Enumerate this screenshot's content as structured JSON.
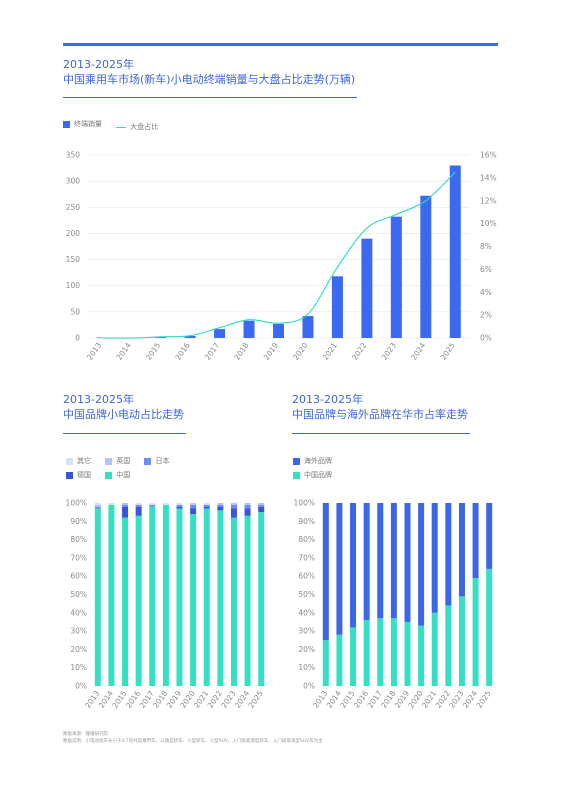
{
  "page": {
    "main_title_1": "2013-2025年",
    "main_title_2": "中国乘用车市场(新车)小电动终端销量与大盘占比走势(万辆)",
    "left_title_1": "2013-2025年",
    "left_title_2": "中国品牌小电动占比走势",
    "right_title_1": "2013-2025年",
    "right_title_2": "中国品牌与海外品牌在华市占率走势",
    "source_line": "数据来源：懂懂研究院",
    "note_line": "数据说明：小电动指车长小于4.7的纯电乘用车，以微型轿车、小型轿车、小型SUV、入门级紧凑型轿车、入门级紧凑型SUV等为主"
  },
  "colors": {
    "bar": "#3b6af0",
    "line": "#2fd9c2",
    "china": "#33e0c4",
    "japan": "#6f8ef5",
    "uk": "#b3c3f5",
    "germany": "#3a55d8",
    "other": "#d6e0f7",
    "overseas": "#3b66e6",
    "title": "#3b66e0"
  },
  "chart_data": [
    {
      "type": "bar",
      "categories": [
        "2013",
        "2014",
        "2015",
        "2016",
        "2017",
        "2018",
        "2019",
        "2020",
        "2021",
        "2022",
        "2023",
        "2024",
        "2025"
      ],
      "series": [
        {
          "name": "终端销量",
          "type": "bar",
          "axis": "left",
          "values": [
            1,
            1,
            2,
            4,
            17,
            33,
            27,
            42,
            118,
            190,
            232,
            272,
            330
          ]
        },
        {
          "name": "大盘占比",
          "type": "line",
          "axis": "right",
          "values": [
            0.0,
            0.0,
            0.1,
            0.2,
            0.9,
            1.6,
            1.3,
            2.1,
            6.2,
            9.6,
            10.8,
            12.0,
            14.5
          ]
        }
      ],
      "ylim": [
        0,
        350
      ],
      "yticks": [
        "0",
        "50",
        "100",
        "150",
        "200",
        "250",
        "300",
        "350"
      ],
      "y2lim": [
        0,
        16
      ],
      "y2ticks": [
        "0%",
        "2%",
        "4%",
        "6%",
        "8%",
        "10%",
        "12%",
        "14%",
        "16%"
      ],
      "grid": true,
      "legend_position": "top-left"
    },
    {
      "type": "bar",
      "stacked": true,
      "categories": [
        "2013",
        "2014",
        "2015",
        "2016",
        "2017",
        "2018",
        "2019",
        "2020",
        "2021",
        "2022",
        "2023",
        "2024",
        "2025"
      ],
      "series": [
        {
          "name": "中国",
          "values": [
            97,
            99,
            92,
            93,
            98,
            99,
            97,
            94,
            97,
            96,
            92,
            93,
            95
          ]
        },
        {
          "name": "德国",
          "values": [
            0,
            0,
            6,
            5,
            0,
            0,
            1,
            3,
            1,
            2,
            5,
            4,
            3
          ]
        },
        {
          "name": "日本",
          "values": [
            1,
            0,
            1,
            1,
            1,
            0,
            1,
            2,
            1,
            1,
            2,
            2,
            1
          ]
        },
        {
          "name": "英国",
          "values": [
            1,
            0,
            1,
            0,
            0,
            0,
            0,
            1,
            0,
            1,
            1,
            1,
            1
          ]
        },
        {
          "name": "其它",
          "values": [
            1,
            1,
            0,
            1,
            1,
            1,
            1,
            0,
            1,
            0,
            0,
            0,
            0
          ]
        }
      ],
      "legend_order": [
        "其它",
        "英国",
        "日本",
        "德国",
        "中国"
      ],
      "ylim": [
        0,
        100
      ],
      "yticks": [
        "0%",
        "10%",
        "20%",
        "30%",
        "40%",
        "50%",
        "60%",
        "70%",
        "80%",
        "90%",
        "100%"
      ],
      "legend_position": "top-left"
    },
    {
      "type": "bar",
      "stacked": true,
      "categories": [
        "2013",
        "2014",
        "2015",
        "2016",
        "2017",
        "2018",
        "2019",
        "2020",
        "2021",
        "2022",
        "2023",
        "2024",
        "2025"
      ],
      "series": [
        {
          "name": "中国品牌",
          "values": [
            25,
            28,
            32,
            36,
            37,
            37,
            35,
            33,
            40,
            44,
            49,
            59,
            64
          ]
        },
        {
          "name": "海外品牌",
          "values": [
            75,
            72,
            68,
            64,
            63,
            63,
            65,
            67,
            60,
            56,
            51,
            41,
            36
          ]
        }
      ],
      "legend_order": [
        "海外品牌",
        "中国品牌"
      ],
      "ylim": [
        0,
        100
      ],
      "yticks": [
        "0%",
        "10%",
        "20%",
        "30%",
        "40%",
        "50%",
        "60%",
        "70%",
        "80%",
        "90%",
        "100%"
      ],
      "legend_position": "top-left"
    }
  ]
}
